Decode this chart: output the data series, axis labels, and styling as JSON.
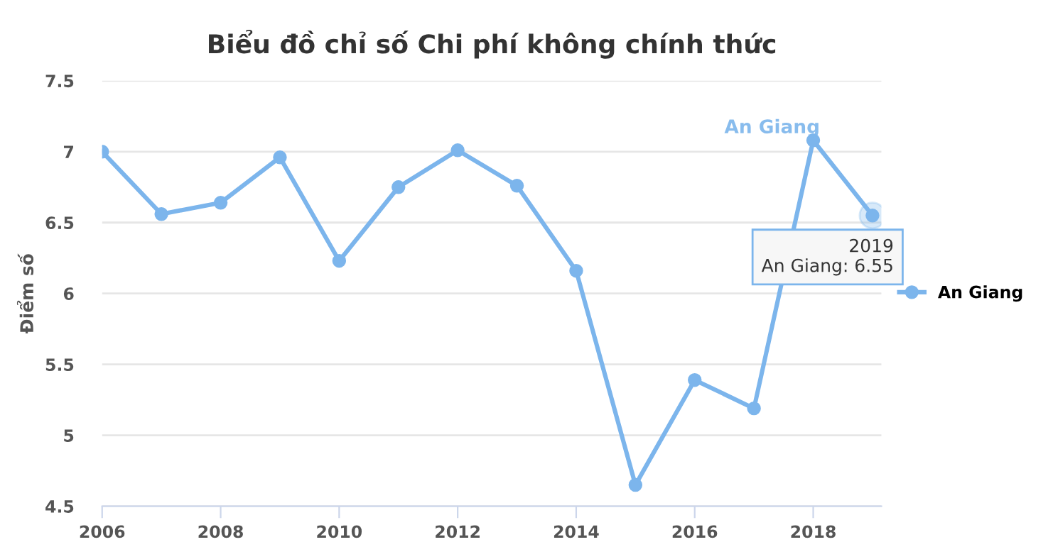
{
  "chart_data": {
    "type": "line",
    "title": "Biểu đồ chỉ số Chi phí không chính thức",
    "ylabel": "Điểm số",
    "x": [
      2006,
      2007,
      2008,
      2009,
      2010,
      2011,
      2012,
      2013,
      2014,
      2015,
      2016,
      2017,
      2018,
      2019
    ],
    "series": [
      {
        "name": "An Giang",
        "color": "#7cb5ec",
        "values": [
          7.0,
          6.56,
          6.64,
          6.96,
          6.23,
          6.75,
          7.01,
          6.76,
          6.16,
          4.65,
          5.39,
          5.19,
          7.08,
          6.55
        ]
      }
    ],
    "xlim": [
      2006,
      2019.15
    ],
    "xticks": [
      2006,
      2008,
      2010,
      2012,
      2014,
      2016,
      2018
    ],
    "ylim": [
      4.5,
      7.5
    ],
    "yticks": [
      4.5,
      5,
      5.5,
      6,
      6.5,
      7,
      7.5
    ],
    "grid": "y",
    "legend": "right",
    "marker": "circle",
    "line_style": "solid",
    "annotations": [
      {
        "text": "2019\nAn Giang: 6.55",
        "x": 2019,
        "y": 6.55
      }
    ]
  }
}
